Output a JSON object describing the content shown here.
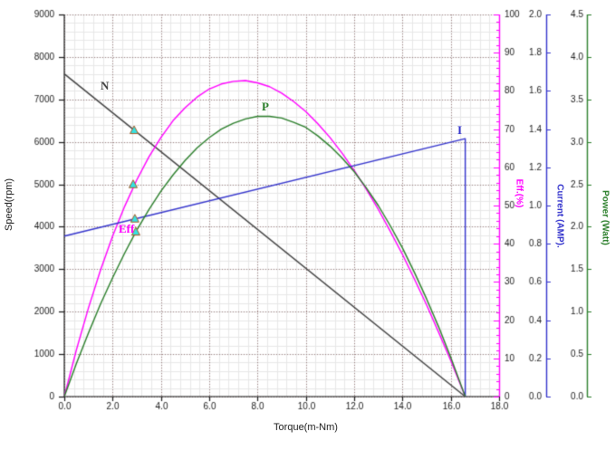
{
  "chart": {
    "background": "#ffffff",
    "grid": {
      "minor_color": "#e7e7e7",
      "major_color": "#9b7d7d"
    },
    "x_axis": {
      "title": "Torque(m-Nm)",
      "min": 0,
      "max": 18,
      "major_step": 2,
      "minor_step": 0.4,
      "tick_labels": [
        "0.0",
        "2.0",
        "4.0",
        "6.0",
        "8.0",
        "10.0",
        "12.0",
        "14.0",
        "16.0",
        "18.0"
      ],
      "color": "#1a1a1a"
    },
    "speed_axis": {
      "title": "Speed(rpm)",
      "min": 0,
      "max": 9000,
      "major_step": 1000,
      "minor_step": 200,
      "tick_labels": [
        "0",
        "1000",
        "2000",
        "3000",
        "4000",
        "5000",
        "6000",
        "7000",
        "8000",
        "9000"
      ],
      "color": "#1a1a1a"
    },
    "eff_axis": {
      "title": "Eff.(%)",
      "min": 0,
      "max": 100,
      "major_step": 10,
      "minor_step": 2,
      "tick_labels": [
        "0",
        "10",
        "20",
        "30",
        "40",
        "50",
        "60",
        "70",
        "80",
        "90",
        "100"
      ],
      "color": "#ff00ff"
    },
    "current_axis": {
      "title": "Current (AMP).",
      "min": 0,
      "max": 2,
      "major_step": 0.2,
      "tick_labels": [
        "0.0",
        "0.2",
        "0.4",
        "0.6",
        "0.8",
        "1.0",
        "1.2",
        "1.4",
        "1.6",
        "1.8",
        "2.0"
      ],
      "color": "#3333cc"
    },
    "power_axis": {
      "title": "Power (Watt)",
      "min": 0,
      "max": 4.5,
      "major_step": 0.5,
      "tick_labels": [
        "0.0",
        "0.5",
        "1.0",
        "1.5",
        "2.0",
        "2.5",
        "3.0",
        "3.5",
        "4.0",
        "4.5"
      ],
      "color": "#2a7e2a"
    }
  },
  "chart_data": {
    "type": "line",
    "xlabel": "Torque(m-Nm)",
    "x_range": [
      0,
      18
    ],
    "series": [
      {
        "name": "N",
        "label": "N",
        "axis": "speed",
        "color": "#3f3f3f",
        "points": [
          [
            0,
            7600
          ],
          [
            16.6,
            0
          ]
        ]
      },
      {
        "name": "Eff",
        "label": "Eff",
        "axis": "eff",
        "color": "#ff00ff",
        "points": [
          [
            0,
            0
          ],
          [
            0.5,
            12.2
          ],
          [
            1,
            23.2
          ],
          [
            1.5,
            33.1
          ],
          [
            2,
            42.0
          ],
          [
            2.5,
            49.8
          ],
          [
            3,
            56.7
          ],
          [
            3.5,
            62.7
          ],
          [
            4,
            67.8
          ],
          [
            4.5,
            72.2
          ],
          [
            5,
            75.6
          ],
          [
            5.5,
            78.4
          ],
          [
            6,
            80.5
          ],
          [
            6.5,
            81.8
          ],
          [
            7,
            82.5
          ],
          [
            7.5,
            82.7
          ],
          [
            8,
            82.1
          ],
          [
            8.5,
            81.1
          ],
          [
            9,
            79.4
          ],
          [
            9.5,
            77.2
          ],
          [
            10,
            74.6
          ],
          [
            10.5,
            71.4
          ],
          [
            11,
            67.8
          ],
          [
            11.5,
            63.7
          ],
          [
            12,
            59.2
          ],
          [
            12.5,
            54.3
          ],
          [
            13,
            49.0
          ],
          [
            13.5,
            43.2
          ],
          [
            14,
            37.2
          ],
          [
            14.5,
            30.7
          ],
          [
            15,
            24.0
          ],
          [
            15.5,
            16.8
          ],
          [
            16,
            9.4
          ],
          [
            16.6,
            0
          ]
        ]
      },
      {
        "name": "I",
        "label": "I",
        "axis": "current",
        "color": "#3333cc",
        "points": [
          [
            0,
            0.84
          ],
          [
            16.6,
            1.35
          ],
          [
            16.6,
            0
          ]
        ]
      },
      {
        "name": "P",
        "label": "P",
        "axis": "power",
        "color": "#2a7e2a",
        "points": [
          [
            0,
            0
          ],
          [
            0.5,
            0.39
          ],
          [
            1,
            0.75
          ],
          [
            1.5,
            1.09
          ],
          [
            2,
            1.4
          ],
          [
            2.5,
            1.69
          ],
          [
            3,
            1.96
          ],
          [
            3.5,
            2.2
          ],
          [
            4,
            2.42
          ],
          [
            4.5,
            2.61
          ],
          [
            5,
            2.78
          ],
          [
            5.5,
            2.93
          ],
          [
            6,
            3.05
          ],
          [
            6.5,
            3.15
          ],
          [
            7,
            3.22
          ],
          [
            7.5,
            3.27
          ],
          [
            8,
            3.3
          ],
          [
            8.5,
            3.3
          ],
          [
            9,
            3.28
          ],
          [
            9.5,
            3.23
          ],
          [
            10,
            3.17
          ],
          [
            10.5,
            3.07
          ],
          [
            11,
            2.95
          ],
          [
            11.5,
            2.81
          ],
          [
            12,
            2.65
          ],
          [
            12.5,
            2.46
          ],
          [
            13,
            2.25
          ],
          [
            13.5,
            2.01
          ],
          [
            14,
            1.75
          ],
          [
            14.5,
            1.46
          ],
          [
            15,
            1.15
          ],
          [
            15.5,
            0.82
          ],
          [
            16,
            0.46
          ],
          [
            16.6,
            0
          ]
        ]
      }
    ],
    "markers": {
      "shape": "triangle-up",
      "fill": "#35e3e3",
      "stroke": "#a95c28",
      "points": [
        {
          "series": "N",
          "x": 2.89,
          "y": 6270
        },
        {
          "series": "Eff",
          "x": 2.85,
          "y": 55.5
        },
        {
          "series": "I",
          "x": 2.92,
          "y": 0.93
        },
        {
          "series": "P",
          "x": 2.96,
          "y": 1.94
        }
      ]
    }
  }
}
